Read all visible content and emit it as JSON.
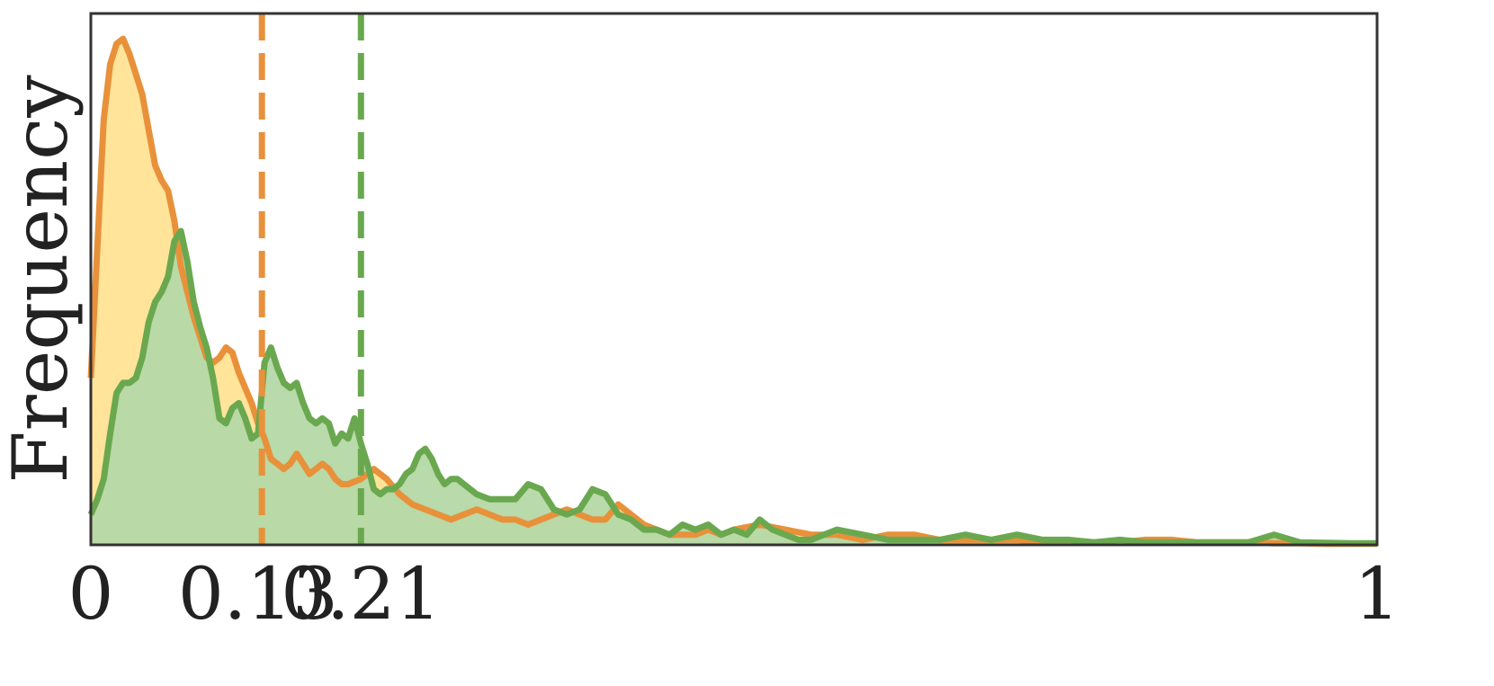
{
  "chart_data": {
    "type": "area",
    "ylabel": "Frequency",
    "xlabel": "",
    "xlim": [
      0,
      1
    ],
    "ylim": [
      0,
      1.05
    ],
    "grid": false,
    "x_ticks": [
      0,
      0.13,
      0.21,
      1
    ],
    "x_tick_labels": [
      "0",
      "0.13",
      "0.21",
      "1"
    ],
    "colors": {
      "orange_line": "#E8913A",
      "orange_fill": "#FFE49A",
      "green_line": "#6AA84F",
      "green_fill": "#B5D8A7",
      "axis": "#333333"
    },
    "series": [
      {
        "color": "orange",
        "mean": 0.133,
        "x": [
          0.0,
          0.01,
          0.015,
          0.02,
          0.025,
          0.03,
          0.035,
          0.04,
          0.045,
          0.05,
          0.055,
          0.06,
          0.065,
          0.07,
          0.075,
          0.08,
          0.085,
          0.09,
          0.095,
          0.1,
          0.105,
          0.11,
          0.115,
          0.12,
          0.125,
          0.13,
          0.135,
          0.14,
          0.145,
          0.15,
          0.155,
          0.16,
          0.165,
          0.17,
          0.175,
          0.18,
          0.185,
          0.19,
          0.195,
          0.2,
          0.21,
          0.22,
          0.23,
          0.24,
          0.25,
          0.26,
          0.27,
          0.28,
          0.29,
          0.3,
          0.31,
          0.32,
          0.33,
          0.34,
          0.35,
          0.36,
          0.37,
          0.38,
          0.39,
          0.4,
          0.41,
          0.42,
          0.43,
          0.44,
          0.45,
          0.46,
          0.47,
          0.48,
          0.49,
          0.5,
          0.52,
          0.54,
          0.56,
          0.58,
          0.6,
          0.62,
          0.64,
          0.66,
          0.68,
          0.7,
          0.72,
          0.74,
          0.76,
          0.78,
          0.8,
          0.82,
          0.84,
          0.86,
          0.88,
          0.9,
          0.92,
          0.94,
          0.96,
          0.98,
          1.0
        ],
        "y": [
          0.33,
          0.84,
          0.95,
          0.99,
          1.0,
          0.97,
          0.93,
          0.89,
          0.82,
          0.75,
          0.72,
          0.7,
          0.64,
          0.55,
          0.5,
          0.45,
          0.41,
          0.37,
          0.36,
          0.37,
          0.39,
          0.38,
          0.34,
          0.31,
          0.28,
          0.24,
          0.21,
          0.17,
          0.16,
          0.15,
          0.16,
          0.18,
          0.16,
          0.14,
          0.15,
          0.16,
          0.15,
          0.13,
          0.12,
          0.12,
          0.13,
          0.15,
          0.13,
          0.1,
          0.08,
          0.07,
          0.06,
          0.05,
          0.06,
          0.07,
          0.06,
          0.05,
          0.05,
          0.04,
          0.05,
          0.06,
          0.07,
          0.06,
          0.05,
          0.05,
          0.08,
          0.06,
          0.04,
          0.03,
          0.02,
          0.02,
          0.02,
          0.03,
          0.02,
          0.03,
          0.04,
          0.03,
          0.02,
          0.02,
          0.01,
          0.02,
          0.02,
          0.01,
          0.01,
          0.01,
          0.01,
          0.005,
          0.005,
          0.005,
          0.005,
          0.01,
          0.01,
          0.005,
          0.005,
          0.005,
          0.003,
          0.003,
          0.002,
          0.002,
          0.002
        ]
      },
      {
        "color": "green",
        "mean": 0.21,
        "x": [
          0.0,
          0.005,
          0.01,
          0.015,
          0.02,
          0.025,
          0.03,
          0.035,
          0.04,
          0.045,
          0.05,
          0.055,
          0.06,
          0.065,
          0.07,
          0.075,
          0.08,
          0.085,
          0.09,
          0.095,
          0.1,
          0.105,
          0.11,
          0.115,
          0.12,
          0.125,
          0.13,
          0.135,
          0.14,
          0.145,
          0.15,
          0.155,
          0.16,
          0.165,
          0.17,
          0.175,
          0.18,
          0.185,
          0.19,
          0.195,
          0.2,
          0.205,
          0.21,
          0.215,
          0.22,
          0.225,
          0.23,
          0.235,
          0.24,
          0.245,
          0.25,
          0.255,
          0.26,
          0.265,
          0.27,
          0.275,
          0.28,
          0.285,
          0.29,
          0.3,
          0.31,
          0.32,
          0.33,
          0.34,
          0.35,
          0.36,
          0.37,
          0.38,
          0.39,
          0.4,
          0.41,
          0.42,
          0.43,
          0.44,
          0.45,
          0.46,
          0.47,
          0.48,
          0.49,
          0.5,
          0.51,
          0.52,
          0.53,
          0.54,
          0.55,
          0.56,
          0.57,
          0.58,
          0.6,
          0.62,
          0.64,
          0.66,
          0.68,
          0.7,
          0.72,
          0.74,
          0.76,
          0.78,
          0.8,
          0.82,
          0.84,
          0.86,
          0.88,
          0.9,
          0.92,
          0.94,
          0.96,
          0.98,
          1.0
        ],
        "y": [
          0.06,
          0.09,
          0.13,
          0.22,
          0.3,
          0.32,
          0.32,
          0.33,
          0.37,
          0.44,
          0.48,
          0.5,
          0.53,
          0.6,
          0.62,
          0.56,
          0.48,
          0.43,
          0.39,
          0.33,
          0.25,
          0.24,
          0.27,
          0.28,
          0.25,
          0.21,
          0.22,
          0.36,
          0.39,
          0.35,
          0.32,
          0.31,
          0.32,
          0.28,
          0.25,
          0.24,
          0.25,
          0.24,
          0.2,
          0.22,
          0.21,
          0.25,
          0.2,
          0.16,
          0.11,
          0.1,
          0.11,
          0.11,
          0.12,
          0.14,
          0.15,
          0.18,
          0.19,
          0.17,
          0.14,
          0.12,
          0.13,
          0.13,
          0.12,
          0.1,
          0.09,
          0.09,
          0.09,
          0.12,
          0.11,
          0.07,
          0.06,
          0.07,
          0.11,
          0.1,
          0.06,
          0.05,
          0.03,
          0.03,
          0.02,
          0.04,
          0.03,
          0.04,
          0.02,
          0.03,
          0.02,
          0.05,
          0.03,
          0.02,
          0.01,
          0.01,
          0.02,
          0.03,
          0.02,
          0.01,
          0.01,
          0.01,
          0.02,
          0.01,
          0.02,
          0.01,
          0.01,
          0.005,
          0.01,
          0.005,
          0.005,
          0.005,
          0.005,
          0.005,
          0.02,
          0.005,
          0.004,
          0.003,
          0.003
        ]
      }
    ]
  }
}
